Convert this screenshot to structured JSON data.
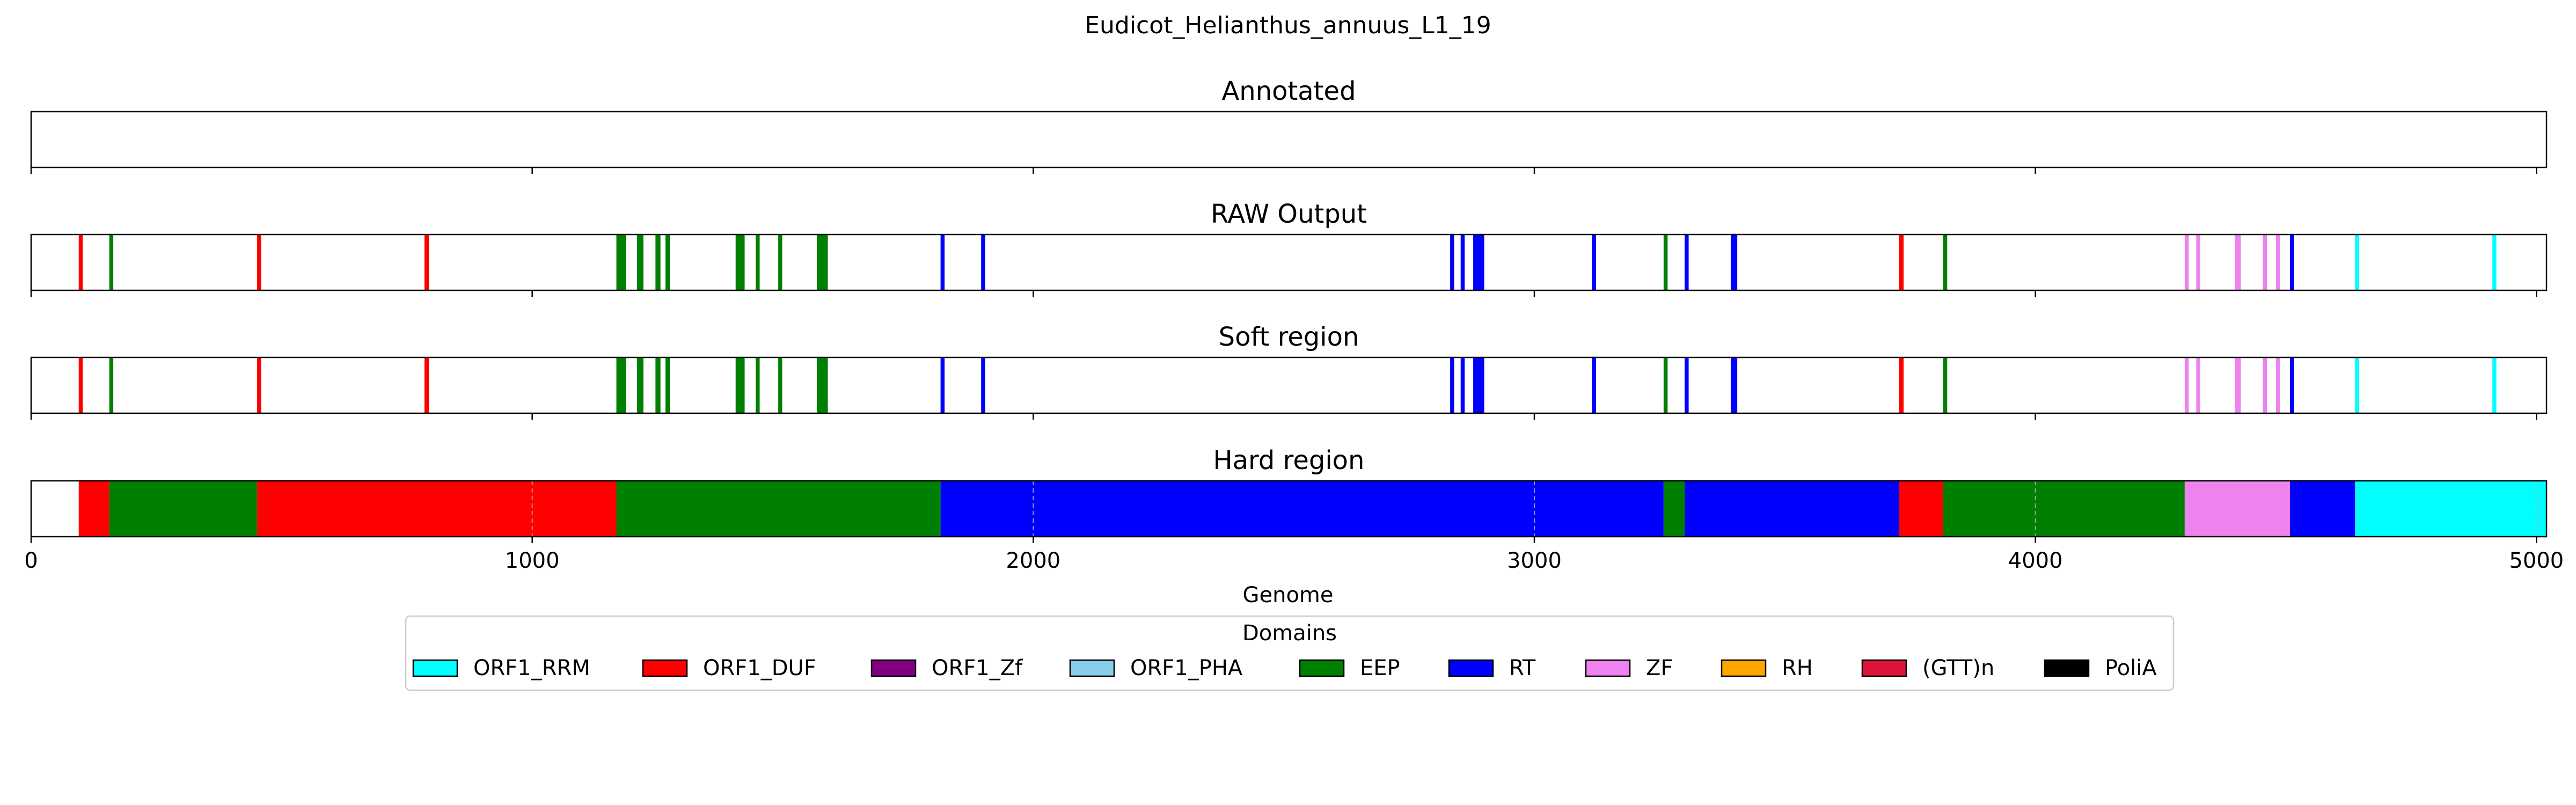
{
  "chart_data": {
    "type": "track",
    "title": "Eudicot_Helianthus_annuus_L1_19",
    "xlabel": "Genome",
    "xlim": [
      0,
      5020
    ],
    "x_ticks": [
      0,
      1000,
      2000,
      3000,
      4000,
      5000
    ],
    "x_tick_labels": [
      "0",
      "1000",
      "2000",
      "3000",
      "4000",
      "5000"
    ],
    "grid": "x dashed on Hard region track only",
    "legend": {
      "title": "Domains",
      "placement": "bottom-center",
      "entries": [
        {
          "name": "ORF1_RRM",
          "color": "#00ffff"
        },
        {
          "name": "ORF1_DUF",
          "color": "#ff0000"
        },
        {
          "name": "ORF1_Zf",
          "color": "#800080"
        },
        {
          "name": "ORF1_PHA",
          "color": "#87ceeb"
        },
        {
          "name": "EEP",
          "color": "#008000"
        },
        {
          "name": "RT",
          "color": "#0000ff"
        },
        {
          "name": "ZF",
          "color": "#ee82ee"
        },
        {
          "name": "RH",
          "color": "#ffa500"
        },
        {
          "name": "(GTT)n",
          "color": "#dc143c"
        },
        {
          "name": "PoliA",
          "color": "#000000"
        }
      ]
    },
    "tracks": [
      {
        "name": "Annotated",
        "segments": []
      },
      {
        "name": "RAW Output",
        "segments": [
          {
            "start": 95,
            "end": 103,
            "domain": "ORF1_DUF"
          },
          {
            "start": 156,
            "end": 164,
            "domain": "EEP"
          },
          {
            "start": 451,
            "end": 459,
            "domain": "ORF1_DUF"
          },
          {
            "start": 785,
            "end": 794,
            "domain": "ORF1_DUF"
          },
          {
            "start": 1168,
            "end": 1187,
            "domain": "EEP"
          },
          {
            "start": 1209,
            "end": 1222,
            "domain": "EEP"
          },
          {
            "start": 1246,
            "end": 1256,
            "domain": "EEP"
          },
          {
            "start": 1266,
            "end": 1275,
            "domain": "EEP"
          },
          {
            "start": 1406,
            "end": 1424,
            "domain": "EEP"
          },
          {
            "start": 1446,
            "end": 1454,
            "domain": "EEP"
          },
          {
            "start": 1491,
            "end": 1499,
            "domain": "EEP"
          },
          {
            "start": 1568,
            "end": 1590,
            "domain": "EEP"
          },
          {
            "start": 1815,
            "end": 1823,
            "domain": "RT"
          },
          {
            "start": 1896,
            "end": 1904,
            "domain": "RT"
          },
          {
            "start": 2832,
            "end": 2840,
            "domain": "RT"
          },
          {
            "start": 2853,
            "end": 2861,
            "domain": "RT"
          },
          {
            "start": 2878,
            "end": 2900,
            "domain": "RT"
          },
          {
            "start": 3115,
            "end": 3123,
            "domain": "RT"
          },
          {
            "start": 3258,
            "end": 3266,
            "domain": "EEP"
          },
          {
            "start": 3300,
            "end": 3308,
            "domain": "RT"
          },
          {
            "start": 3392,
            "end": 3405,
            "domain": "RT"
          },
          {
            "start": 3728,
            "end": 3737,
            "domain": "ORF1_DUF"
          },
          {
            "start": 3816,
            "end": 3824,
            "domain": "EEP"
          },
          {
            "start": 4298,
            "end": 4306,
            "domain": "ZF"
          },
          {
            "start": 4321,
            "end": 4329,
            "domain": "ZF"
          },
          {
            "start": 4398,
            "end": 4410,
            "domain": "ZF"
          },
          {
            "start": 4454,
            "end": 4462,
            "domain": "ZF"
          },
          {
            "start": 4480,
            "end": 4488,
            "domain": "ZF"
          },
          {
            "start": 4508,
            "end": 4516,
            "domain": "RT"
          },
          {
            "start": 4638,
            "end": 4646,
            "domain": "ORF1_RRM"
          },
          {
            "start": 4912,
            "end": 4920,
            "domain": "ORF1_RRM"
          }
        ]
      },
      {
        "name": "Soft region",
        "segments": [
          {
            "start": 95,
            "end": 103,
            "domain": "ORF1_DUF"
          },
          {
            "start": 156,
            "end": 164,
            "domain": "EEP"
          },
          {
            "start": 451,
            "end": 459,
            "domain": "ORF1_DUF"
          },
          {
            "start": 785,
            "end": 794,
            "domain": "ORF1_DUF"
          },
          {
            "start": 1168,
            "end": 1187,
            "domain": "EEP"
          },
          {
            "start": 1209,
            "end": 1222,
            "domain": "EEP"
          },
          {
            "start": 1246,
            "end": 1256,
            "domain": "EEP"
          },
          {
            "start": 1266,
            "end": 1275,
            "domain": "EEP"
          },
          {
            "start": 1406,
            "end": 1424,
            "domain": "EEP"
          },
          {
            "start": 1446,
            "end": 1454,
            "domain": "EEP"
          },
          {
            "start": 1491,
            "end": 1499,
            "domain": "EEP"
          },
          {
            "start": 1568,
            "end": 1590,
            "domain": "EEP"
          },
          {
            "start": 1815,
            "end": 1823,
            "domain": "RT"
          },
          {
            "start": 1896,
            "end": 1904,
            "domain": "RT"
          },
          {
            "start": 2832,
            "end": 2840,
            "domain": "RT"
          },
          {
            "start": 2853,
            "end": 2861,
            "domain": "RT"
          },
          {
            "start": 2878,
            "end": 2900,
            "domain": "RT"
          },
          {
            "start": 3115,
            "end": 3123,
            "domain": "RT"
          },
          {
            "start": 3258,
            "end": 3266,
            "domain": "EEP"
          },
          {
            "start": 3300,
            "end": 3308,
            "domain": "RT"
          },
          {
            "start": 3392,
            "end": 3405,
            "domain": "RT"
          },
          {
            "start": 3728,
            "end": 3737,
            "domain": "ORF1_DUF"
          },
          {
            "start": 3816,
            "end": 3824,
            "domain": "EEP"
          },
          {
            "start": 4298,
            "end": 4306,
            "domain": "ZF"
          },
          {
            "start": 4321,
            "end": 4329,
            "domain": "ZF"
          },
          {
            "start": 4398,
            "end": 4410,
            "domain": "ZF"
          },
          {
            "start": 4454,
            "end": 4462,
            "domain": "ZF"
          },
          {
            "start": 4480,
            "end": 4488,
            "domain": "ZF"
          },
          {
            "start": 4508,
            "end": 4516,
            "domain": "RT"
          },
          {
            "start": 4638,
            "end": 4646,
            "domain": "ORF1_RRM"
          },
          {
            "start": 4912,
            "end": 4920,
            "domain": "ORF1_RRM"
          }
        ]
      },
      {
        "name": "Hard region",
        "segments": [
          {
            "start": 95,
            "end": 156,
            "domain": "ORF1_DUF"
          },
          {
            "start": 156,
            "end": 451,
            "domain": "EEP"
          },
          {
            "start": 451,
            "end": 1168,
            "domain": "ORF1_DUF"
          },
          {
            "start": 1168,
            "end": 1815,
            "domain": "EEP"
          },
          {
            "start": 1815,
            "end": 3258,
            "domain": "RT"
          },
          {
            "start": 3258,
            "end": 3300,
            "domain": "EEP"
          },
          {
            "start": 3300,
            "end": 3728,
            "domain": "RT"
          },
          {
            "start": 3728,
            "end": 3816,
            "domain": "ORF1_DUF"
          },
          {
            "start": 3816,
            "end": 4298,
            "domain": "EEP"
          },
          {
            "start": 4298,
            "end": 4508,
            "domain": "ZF"
          },
          {
            "start": 4508,
            "end": 4638,
            "domain": "RT"
          },
          {
            "start": 4638,
            "end": 5020,
            "domain": "ORF1_RRM"
          }
        ]
      }
    ]
  }
}
